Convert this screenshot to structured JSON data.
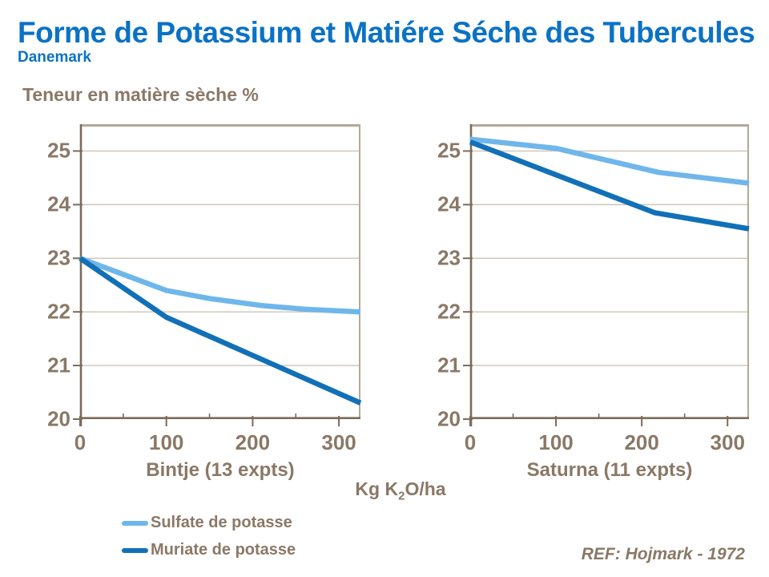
{
  "header": {
    "title": "Forme de Potassium et Matiére Séche des Tubercules",
    "subtitle": "Danemark"
  },
  "y_axis_title": "Teneur en matière sèche %",
  "x_axis_title": {
    "pre": "Kg K",
    "sub": "2",
    "post": "O/ha"
  },
  "legend": [
    {
      "label": "Sulfate de potasse",
      "color": "#6fb6ea"
    },
    {
      "label": "Muriate de potasse",
      "color": "#1170b8"
    }
  ],
  "ref": "REF: Hojmark - 1972",
  "colors": {
    "title_blue": "#0b72c4",
    "brown": "#8a7866",
    "axis": "#7b6b59",
    "border": "#b3a898",
    "grid": "#cdc4b7",
    "sulfate": "#6fb6ea",
    "muriate": "#1170b8"
  },
  "chart_data": [
    {
      "type": "line",
      "title": "Bintje (13 expts)",
      "xlabel": "Kg K2O/ha",
      "ylabel": "Teneur en matière sèche %",
      "xlim": [
        0,
        325
      ],
      "ylim": [
        20,
        25.5
      ],
      "x_ticks": [
        0,
        100,
        200,
        300
      ],
      "x_minor_ticks": [
        50,
        150,
        250
      ],
      "y_ticks": [
        20,
        21,
        22,
        23,
        24,
        25
      ],
      "grid": true,
      "legend_position": "bottom-left-outside",
      "series": [
        {
          "name": "Sulfate de potasse",
          "color": "#6fb6ea",
          "points": [
            [
              0,
              23.0
            ],
            [
              100,
              22.4
            ],
            [
              150,
              22.25
            ],
            [
              210,
              22.12
            ],
            [
              260,
              22.05
            ],
            [
              325,
              22.0
            ]
          ]
        },
        {
          "name": "Muriate de potasse",
          "color": "#1170b8",
          "points": [
            [
              0,
              23.0
            ],
            [
              100,
              21.9
            ],
            [
              325,
              20.3
            ]
          ]
        }
      ]
    },
    {
      "type": "line",
      "title": "Saturna (11 expts)",
      "xlabel": "Kg K2O/ha",
      "ylabel": "Teneur en matière sèche %",
      "xlim": [
        0,
        325
      ],
      "ylim": [
        20,
        25.5
      ],
      "x_ticks": [
        0,
        100,
        200,
        300
      ],
      "x_minor_ticks": [
        50,
        150,
        250
      ],
      "y_ticks": [
        20,
        21,
        22,
        23,
        24,
        25
      ],
      "grid": true,
      "legend_position": "bottom-left-outside",
      "series": [
        {
          "name": "Sulfate de potasse",
          "color": "#6fb6ea",
          "points": [
            [
              0,
              25.22
            ],
            [
              100,
              25.05
            ],
            [
              220,
              24.6
            ],
            [
              325,
              24.4
            ]
          ]
        },
        {
          "name": "Muriate de potasse",
          "color": "#1170b8",
          "points": [
            [
              0,
              25.17
            ],
            [
              215,
              23.85
            ],
            [
              325,
              23.55
            ]
          ]
        }
      ]
    }
  ]
}
